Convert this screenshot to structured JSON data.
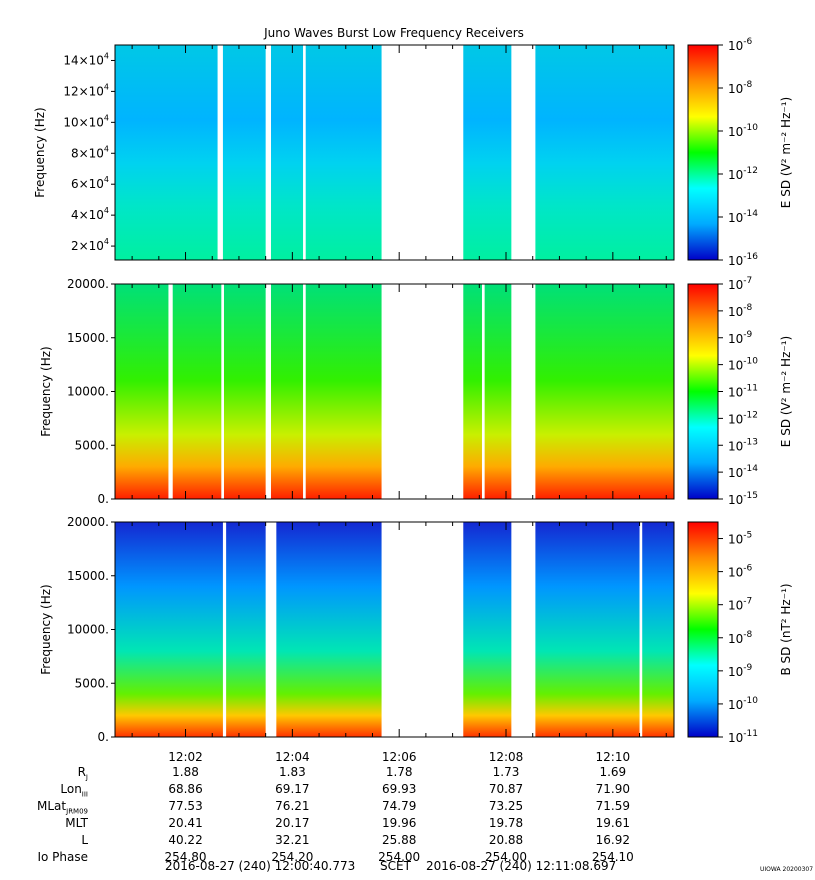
{
  "figure": {
    "title": "Juno Waves Burst Low Frequency Receivers",
    "footer_left": "2016-08-27 (240) 12:00:40.773",
    "footer_mid": "SCET",
    "footer_right": "2016-08-27 (240) 12:11:08.697",
    "credit": "UIOWA 20200307"
  },
  "chart_data": [
    {
      "type": "heatmap",
      "name": "panel-1",
      "ylabel": "Frequency (Hz)",
      "yticks": [
        "14×10^4",
        "12×10^4",
        "10×10^4",
        "8×10^4",
        "6×10^4",
        "4×10^4",
        "2×10^4"
      ],
      "ytick_values": [
        140000,
        120000,
        100000,
        80000,
        60000,
        40000,
        20000
      ],
      "ylim": [
        11000,
        150000
      ],
      "colorbar_label": "E SD (V² m⁻² Hz⁻¹)",
      "colorbar_ticks": [
        "-6",
        "-8",
        "-10",
        "-12",
        "-14",
        "-16"
      ],
      "colorbar_range": [
        -16,
        -6
      ],
      "colormap": [
        "#0000c8",
        "#00aaff",
        "#00ffff",
        "#00ff00",
        "#ffff00",
        "#ff8c00",
        "#ff0000"
      ],
      "gaps_min": [
        [
          2.6,
          2.7
        ],
        [
          3.5,
          3.6
        ],
        [
          4.2,
          4.25
        ],
        [
          5.67,
          7.2
        ],
        [
          8.1,
          8.55
        ]
      ]
    },
    {
      "type": "heatmap",
      "name": "panel-2",
      "ylabel": "Frequency (Hz)",
      "yticks": [
        "20000.",
        "15000.",
        "10000.",
        "5000.",
        "0."
      ],
      "ytick_values": [
        20000,
        15000,
        10000,
        5000,
        0
      ],
      "ylim": [
        0,
        20000
      ],
      "colorbar_label": "E SD (V² m⁻² Hz⁻¹)",
      "colorbar_ticks": [
        "-7",
        "-8",
        "-9",
        "-10",
        "-11",
        "-12",
        "-13",
        "-14",
        "-15"
      ],
      "colorbar_range": [
        -15,
        -7
      ],
      "colormap": [
        "#0000c8",
        "#00aaff",
        "#00ffff",
        "#00ff00",
        "#ffff00",
        "#ff8c00",
        "#ff0000"
      ],
      "gaps_min": [
        [
          1.68,
          1.76
        ],
        [
          2.67,
          2.72
        ],
        [
          3.5,
          3.6
        ],
        [
          4.2,
          4.25
        ],
        [
          5.67,
          7.2
        ],
        [
          7.55,
          7.6
        ],
        [
          8.1,
          8.55
        ]
      ]
    },
    {
      "type": "heatmap",
      "name": "panel-3",
      "ylabel": "Frequency (Hz)",
      "yticks": [
        "20000.",
        "15000.",
        "10000.",
        "5000.",
        "0."
      ],
      "ytick_values": [
        20000,
        15000,
        10000,
        5000,
        0
      ],
      "ylim": [
        0,
        20000
      ],
      "colorbar_label": "B SD (nT² Hz⁻¹)",
      "colorbar_ticks": [
        "-5",
        "-6",
        "-7",
        "-8",
        "-9",
        "-10",
        "-11"
      ],
      "colorbar_range": [
        -11,
        -4.5
      ],
      "colormap": [
        "#0000c8",
        "#00aaff",
        "#00ffff",
        "#00ff00",
        "#ffff00",
        "#ff8c00",
        "#ff0000"
      ],
      "gaps_min": [
        [
          2.7,
          2.76
        ],
        [
          3.5,
          3.7
        ],
        [
          5.67,
          7.2
        ],
        [
          8.1,
          8.55
        ],
        [
          10.5,
          10.55
        ]
      ]
    }
  ],
  "time_axis": {
    "xlim_min": [
      0.6795,
      11.145
    ],
    "tick_labels": [
      "12:02",
      "12:04",
      "12:06",
      "12:08",
      "12:10"
    ],
    "tick_values_min": [
      2,
      4,
      6,
      8,
      10
    ],
    "minor_tick_step_min": 0.5
  },
  "ephemeris": {
    "rows": [
      {
        "label": "R",
        "sub": "J",
        "values": [
          "1.88",
          "1.83",
          "1.78",
          "1.73",
          "1.69"
        ]
      },
      {
        "label": "Lon",
        "sub": "III",
        "values": [
          "68.86",
          "69.17",
          "69.93",
          "70.87",
          "71.90"
        ]
      },
      {
        "label": "MLat",
        "sub": "JRM09",
        "values": [
          "77.53",
          "76.21",
          "74.79",
          "73.25",
          "71.59"
        ]
      },
      {
        "label": "MLT",
        "sub": "",
        "values": [
          "20.41",
          "20.17",
          "19.96",
          "19.78",
          "19.61"
        ]
      },
      {
        "label": "L",
        "sub": "",
        "values": [
          "40.22",
          "32.21",
          "25.88",
          "20.88",
          "16.92"
        ]
      },
      {
        "label": "Io Phase",
        "sub": "",
        "values": [
          "254.80",
          "254.20",
          "254.00",
          "254.00",
          "254.10"
        ]
      }
    ]
  }
}
